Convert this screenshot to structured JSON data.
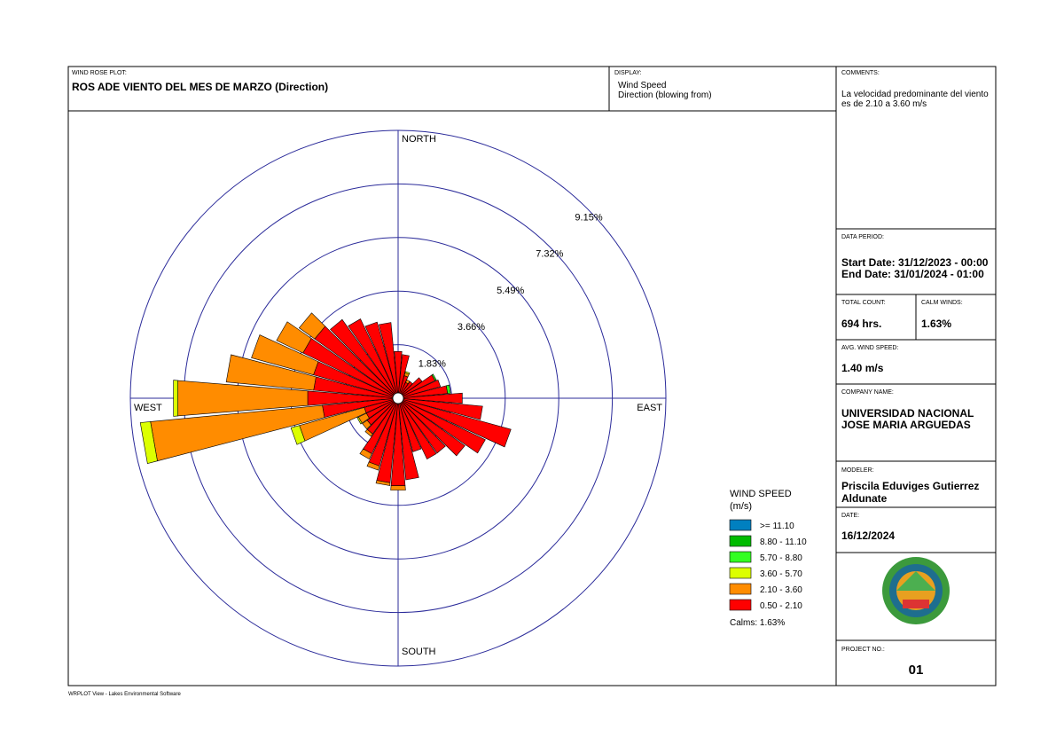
{
  "panels": {
    "plot_label": "WIND ROSE PLOT:",
    "plot_title": "ROS ADE VIENTO DEL MES DE MARZO (Direction)",
    "display_label": "DISPLAY:",
    "display_lines": [
      "Wind Speed",
      "Direction (blowing from)"
    ],
    "comments_label": "COMMENTS:",
    "comments_lines": [
      "La velocidad predominante del viento",
      "es de 2.10 a 3.60 m/s"
    ],
    "data_period_label": "DATA PERIOD:",
    "start_date": "Start Date: 31/12/2023 - 00:00",
    "end_date": "End Date: 31/01/2024 - 01:00",
    "total_count_label": "TOTAL COUNT:",
    "total_count": "694 hrs.",
    "calm_label": "CALM WINDS:",
    "calm": "1.63%",
    "avg_label": "AVG. WIND SPEED:",
    "avg": "1.40 m/s",
    "company_label": "COMPANY NAME:",
    "company_lines": [
      "UNIVERSIDAD NACIONAL",
      "JOSE MARIA ARGUEDAS"
    ],
    "modeler_label": "MODELER:",
    "modeler_lines": [
      "Priscila Eduviges Gutierrez",
      "Aldunate"
    ],
    "date_label": "DATE:",
    "date": "16/12/2024",
    "project_label": "PROJECT NO.:",
    "project": "01",
    "footer": "WRPLOT View - Lakes Environmental Software"
  },
  "chart_data": {
    "type": "windrose",
    "compass": [
      "NORTH",
      "EAST",
      "SOUTH",
      "WEST"
    ],
    "x": [
      0,
      10,
      20,
      30,
      40,
      50,
      60,
      70,
      80,
      90,
      100,
      110,
      120,
      130,
      140,
      150,
      160,
      170,
      180,
      190,
      200,
      210,
      220,
      230,
      240,
      250,
      260,
      270,
      280,
      290,
      300,
      310,
      320,
      330,
      340,
      350
    ],
    "ylim": [
      0,
      9.15
    ],
    "yticks": [
      {
        "value": 1.83,
        "label": "1.83%"
      },
      {
        "value": 3.66,
        "label": "3.66%"
      },
      {
        "value": 5.49,
        "label": "5.49%"
      },
      {
        "value": 7.32,
        "label": "7.32%"
      },
      {
        "value": 9.15,
        "label": "9.15%"
      }
    ],
    "legend_title": "WIND SPEED",
    "legend_unit": "(m/s)",
    "calms_label": "Calms: 1.63%",
    "series": [
      {
        "name": "0.50 - 2.10",
        "color": "#ff0000",
        "values": [
          1.6,
          1.5,
          0.8,
          0.6,
          0.7,
          1.0,
          1.4,
          1.5,
          1.7,
          2.2,
          2.9,
          4.0,
          3.3,
          2.8,
          2.3,
          2.3,
          1.9,
          2.8,
          3.0,
          2.9,
          2.4,
          2.1,
          1.5,
          1.3,
          1.2,
          1.2,
          2.6,
          3.1,
          2.9,
          3.0,
          3.6,
          3.5,
          3.3,
          3.0,
          2.7,
          2.6
        ]
      },
      {
        "name": "2.10 - 3.60",
        "color": "#ff8c00",
        "values": [
          0,
          0,
          0.1,
          0.1,
          0,
          0,
          0,
          0,
          0,
          0,
          0,
          0,
          0,
          0,
          0,
          0,
          0,
          0,
          0.15,
          0.1,
          0.15,
          0.2,
          0.1,
          0.2,
          0.3,
          2.3,
          5.9,
          4.45,
          3.0,
          2.2,
          1.0,
          0.65,
          0,
          0,
          0,
          0
        ]
      },
      {
        "name": "3.60 - 5.70",
        "color": "#dcff00",
        "values": [
          0,
          0,
          0.05,
          0,
          0,
          0,
          0,
          0,
          0,
          0,
          0,
          0,
          0,
          0,
          0,
          0,
          0,
          0,
          0,
          0,
          0,
          0,
          0,
          0,
          0.05,
          0.3,
          0.35,
          0.15,
          0,
          0,
          0,
          0,
          0,
          0,
          0,
          0
        ]
      },
      {
        "name": "5.70 - 8.80",
        "color": "#33ff22",
        "values": [
          0,
          0,
          0,
          0,
          0,
          0,
          0.05,
          0,
          0.1,
          0,
          0,
          0,
          0,
          0,
          0,
          0,
          0,
          0,
          0,
          0,
          0,
          0,
          0,
          0,
          0,
          0,
          0,
          0,
          0,
          0,
          0,
          0,
          0,
          0,
          0,
          0
        ]
      },
      {
        "name": "8.80 - 11.10",
        "color": "#00bb00",
        "values": [
          0,
          0,
          0,
          0,
          0,
          0,
          0,
          0,
          0,
          0,
          0,
          0,
          0,
          0,
          0,
          0,
          0,
          0,
          0,
          0,
          0,
          0,
          0,
          0,
          0,
          0,
          0,
          0,
          0,
          0,
          0,
          0,
          0,
          0,
          0,
          0
        ]
      },
      {
        "name": ">= 11.10",
        "color": "#0080c0",
        "values": [
          0,
          0,
          0,
          0,
          0,
          0,
          0,
          0,
          0,
          0,
          0,
          0,
          0,
          0,
          0,
          0,
          0,
          0,
          0,
          0,
          0,
          0,
          0,
          0,
          0,
          0,
          0,
          0,
          0,
          0,
          0,
          0,
          0,
          0,
          0,
          0
        ]
      }
    ]
  }
}
